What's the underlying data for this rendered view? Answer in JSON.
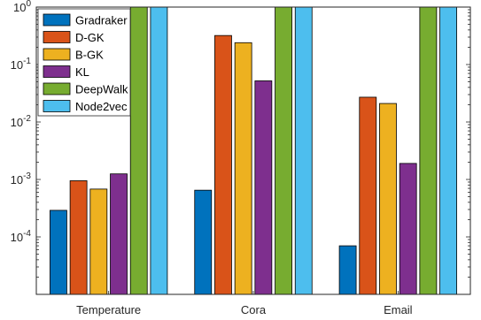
{
  "chart_data": {
    "type": "bar",
    "yscale": "log",
    "ylim": [
      1e-05,
      1
    ],
    "yticks": [
      {
        "value": 1,
        "base": "10",
        "exp": "0"
      },
      {
        "value": 0.1,
        "base": "10",
        "exp": "-1"
      },
      {
        "value": 0.01,
        "base": "10",
        "exp": "-2"
      },
      {
        "value": 0.001,
        "base": "10",
        "exp": "-3"
      },
      {
        "value": 0.0001,
        "base": "10",
        "exp": "-4"
      }
    ],
    "categories": [
      "Temperature",
      "Cora",
      "Email"
    ],
    "series": [
      {
        "name": "Gradraker",
        "color": "#0072BD",
        "values": [
          0.00029,
          0.00065,
          7e-05
        ]
      },
      {
        "name": "D-GK",
        "color": "#D95319",
        "values": [
          0.00095,
          0.32,
          0.027
        ]
      },
      {
        "name": "B-GK",
        "color": "#EDB120",
        "values": [
          0.00068,
          0.24,
          0.021
        ]
      },
      {
        "name": "KL",
        "color": "#7E2F8E",
        "values": [
          0.00125,
          0.052,
          0.0019
        ]
      },
      {
        "name": "DeepWalk",
        "color": "#77AC30",
        "values": [
          1,
          1,
          1
        ]
      },
      {
        "name": "Node2vec",
        "color": "#4DBEEE",
        "values": [
          1,
          1,
          1
        ]
      }
    ],
    "legend": "top-left",
    "grid": false
  }
}
